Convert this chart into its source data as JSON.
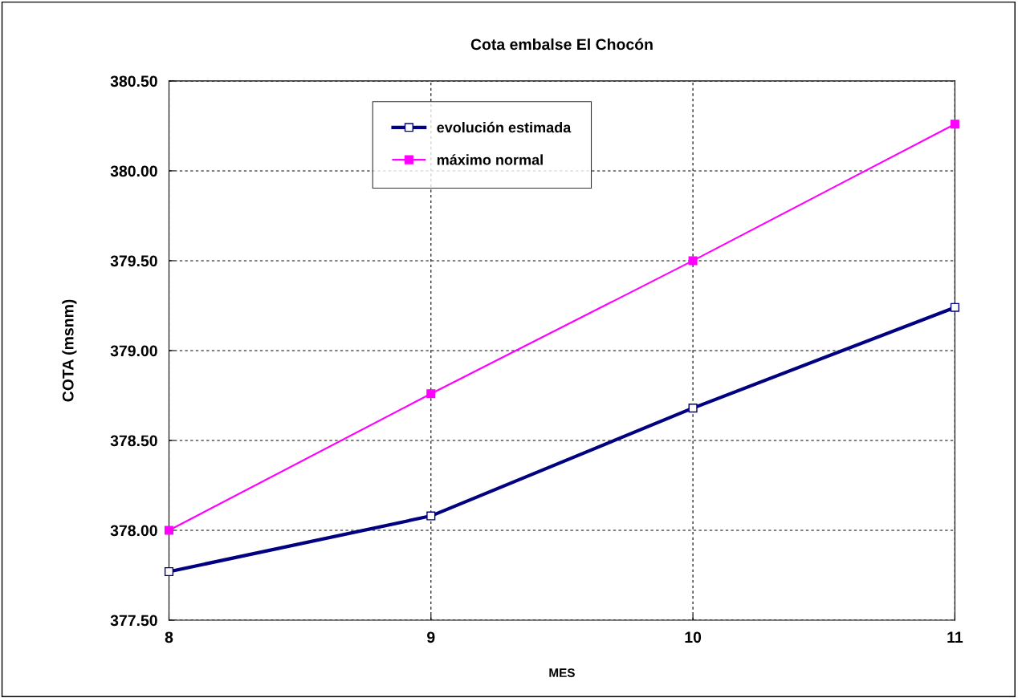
{
  "chart_data": {
    "type": "line",
    "title": "Cota embalse El Chocón",
    "xlabel": "MES",
    "ylabel": "COTA (msnm)",
    "x": [
      8,
      9,
      10,
      11
    ],
    "series": [
      {
        "name": "evolución estimada",
        "color": "#000080",
        "values": [
          377.77,
          378.08,
          378.68,
          379.24
        ]
      },
      {
        "name": "máximo normal",
        "color": "#ff00ff",
        "values": [
          378.0,
          378.76,
          379.5,
          380.26
        ]
      }
    ],
    "xlim": [
      8,
      11
    ],
    "xticks": [
      8,
      9,
      10,
      11
    ],
    "ylim": [
      377.5,
      380.5
    ],
    "yticks": [
      {
        "value": 377.5,
        "label": "377.50"
      },
      {
        "value": 378.0,
        "label": "378.00"
      },
      {
        "value": 378.5,
        "label": "378.50"
      },
      {
        "value": 379.0,
        "label": "379.00"
      },
      {
        "value": 379.5,
        "label": "379.50"
      },
      {
        "value": 380.0,
        "label": "380.00"
      },
      {
        "value": 380.5,
        "label": "380.50"
      }
    ],
    "grid": true,
    "legend": "top",
    "marker": "square",
    "line_style": "solid"
  }
}
